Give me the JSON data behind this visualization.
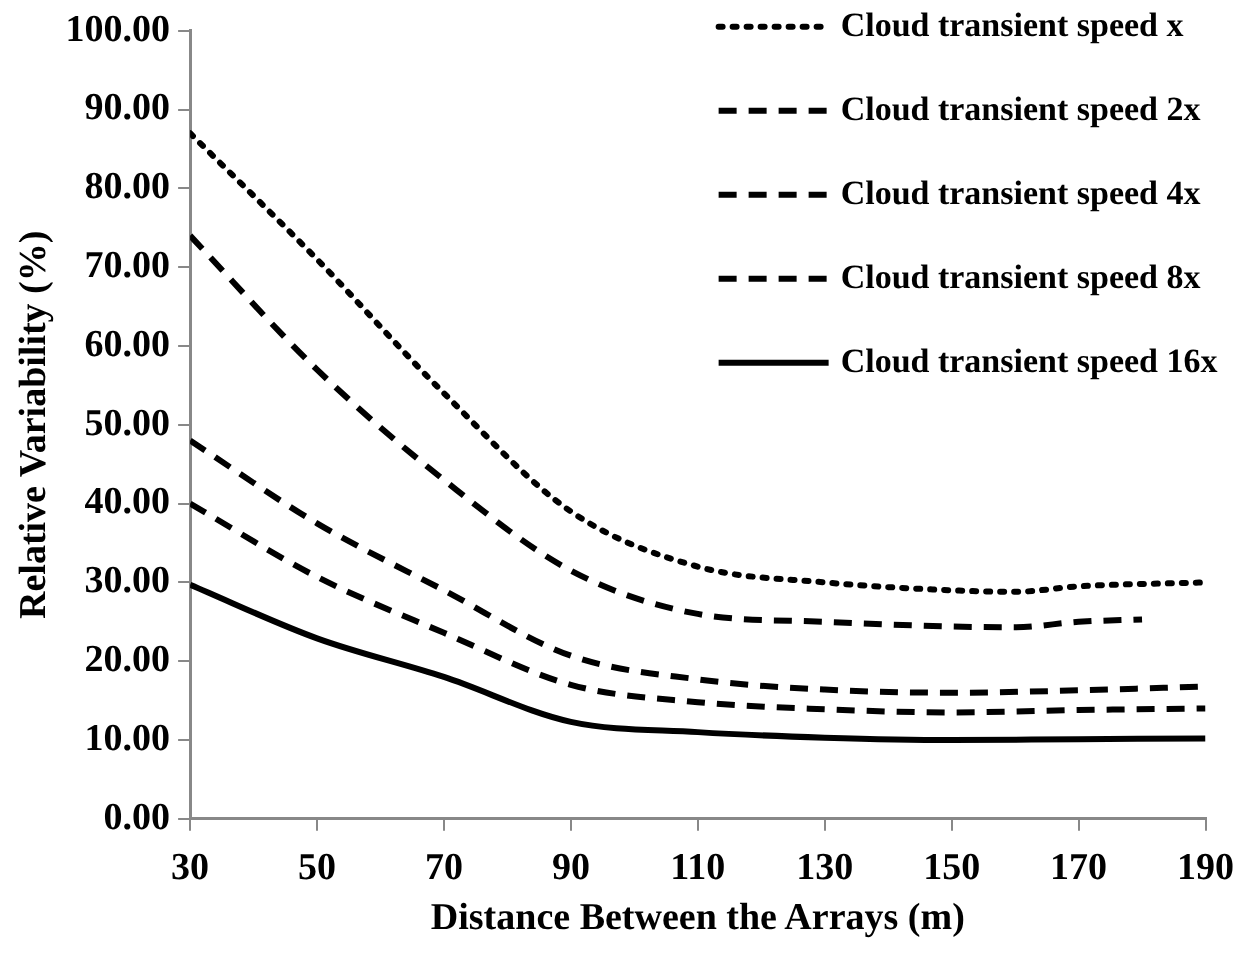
{
  "chart_data": {
    "type": "line",
    "xlabel": "Distance Between the Arrays (m)",
    "ylabel": "Relative Variability (%)",
    "xlim": [
      30,
      190
    ],
    "xticks": [
      30,
      50,
      70,
      90,
      110,
      130,
      150,
      170,
      190
    ],
    "ylim": [
      0,
      100
    ],
    "yticks": [
      {
        "value": 0,
        "label": "0.00"
      },
      {
        "value": 10,
        "label": "10.00"
      },
      {
        "value": 20,
        "label": "20.00"
      },
      {
        "value": 30,
        "label": "30.00"
      },
      {
        "value": 40,
        "label": "40.00"
      },
      {
        "value": 50,
        "label": "50.00"
      },
      {
        "value": 60,
        "label": "60.00"
      },
      {
        "value": 70,
        "label": "70.00"
      },
      {
        "value": 80,
        "label": "80.00"
      },
      {
        "value": 90,
        "label": "90.00"
      },
      {
        "value": 100,
        "label": "100.00"
      }
    ],
    "grid": false,
    "legend": "top right",
    "marker": "none",
    "series": [
      {
        "name": "Cloud transient speed x",
        "color": "#000000",
        "line_style": "dotted",
        "x": [
          30,
          50,
          70,
          90,
          110,
          130,
          150,
          160,
          170,
          190
        ],
        "values": [
          87,
          71,
          54,
          39,
          32,
          30,
          29,
          28.8,
          29.5,
          30
        ]
      },
      {
        "name": "Cloud transient speed 2x",
        "color": "#000000",
        "line_style": "dashed",
        "x": [
          30,
          50,
          70,
          90,
          110,
          130,
          150,
          160,
          170,
          180
        ],
        "values": [
          74,
          57,
          43,
          31.5,
          26,
          25,
          24.4,
          24.3,
          25,
          25.3
        ]
      },
      {
        "name": "Cloud transient speed 4x",
        "color": "#000000",
        "line_style": "dashed",
        "x": [
          30,
          50,
          70,
          90,
          110,
          130,
          150,
          170,
          190
        ],
        "values": [
          48,
          37.5,
          29,
          20.7,
          17.7,
          16.4,
          16,
          16.3,
          16.8
        ]
      },
      {
        "name": "Cloud transient speed 8x",
        "color": "#000000",
        "line_style": "dashed",
        "x": [
          30,
          50,
          70,
          90,
          110,
          130,
          150,
          170,
          190
        ],
        "values": [
          40,
          30.7,
          23.6,
          17,
          14.8,
          13.9,
          13.5,
          13.8,
          14
        ]
      },
      {
        "name": "Cloud transient speed 16x",
        "color": "#000000",
        "line_style": "solid",
        "x": [
          30,
          50,
          70,
          90,
          110,
          130,
          150,
          170,
          190
        ],
        "values": [
          29.7,
          22.9,
          18,
          12.3,
          11,
          10.3,
          10,
          10.1,
          10.2
        ]
      }
    ]
  }
}
